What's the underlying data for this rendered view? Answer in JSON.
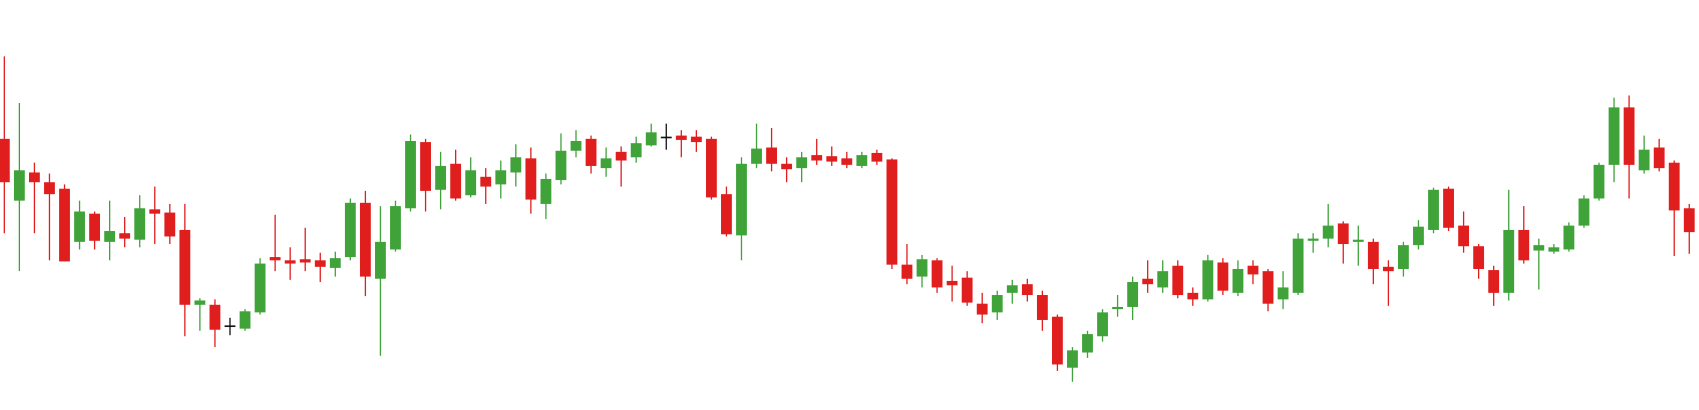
{
  "chart_data": {
    "type": "candlestick",
    "up_color": "#3fa33a",
    "down_color": "#e01e1e",
    "doji_color": "#111111",
    "ylim": [
      0,
      378
    ],
    "open": [
      250,
      193,
      219,
      210,
      204,
      155,
      181,
      155,
      163,
      157,
      185,
      182,
      166,
      97,
      97,
      78,
      75,
      90,
      141,
      138,
      139,
      138,
      131,
      141,
      191,
      121,
      148,
      186,
      247,
      203,
      227,
      198,
      215,
      208,
      219,
      232,
      190,
      212,
      239,
      250,
      223,
      238,
      233,
      244,
      252,
      253,
      252,
      250,
      199,
      161,
      227,
      242,
      227,
      223,
      235,
      234,
      232,
      225,
      237,
      231,
      134,
      123,
      138,
      119,
      122,
      98,
      90,
      108,
      116,
      106,
      86,
      39,
      53,
      68,
      93,
      95,
      121,
      113,
      133,
      108,
      102,
      136,
      108,
      133,
      128,
      102,
      108,
      156,
      158,
      172,
      155,
      155,
      132,
      130,
      152,
      166,
      204,
      170,
      151,
      129,
      108,
      166,
      147,
      146,
      148,
      170,
      195,
      226,
      279,
      221,
      242,
      228,
      186
    ],
    "high": [
      326,
      283,
      228,
      218,
      208,
      193,
      183,
      193,
      178,
      198,
      206,
      190,
      190,
      103,
      102,
      85,
      93,
      140,
      180,
      150,
      168,
      145,
      146,
      195,
      202,
      188,
      193,
      254,
      250,
      238,
      240,
      233,
      223,
      230,
      245,
      242,
      218,
      255,
      258,
      253,
      242,
      243,
      252,
      264,
      264,
      258,
      258,
      252,
      206,
      233,
      264,
      260,
      233,
      238,
      250,
      243,
      238,
      238,
      240,
      232,
      153,
      143,
      140,
      133,
      128,
      108,
      110,
      120,
      121,
      110,
      88,
      58,
      73,
      93,
      106,
      123,
      138,
      138,
      138,
      113,
      143,
      140,
      138,
      138,
      130,
      128,
      163,
      163,
      190,
      174,
      170,
      158,
      138,
      155,
      175,
      205,
      206,
      183,
      153,
      133,
      203,
      188,
      158,
      153,
      173,
      198,
      228,
      288,
      290,
      253,
      250,
      230,
      190
    ],
    "low": [
      163,
      128,
      163,
      138,
      137,
      148,
      148,
      138,
      150,
      150,
      153,
      153,
      68,
      73,
      58,
      69,
      73,
      88,
      128,
      120,
      128,
      118,
      123,
      138,
      105,
      50,
      146,
      183,
      183,
      185,
      193,
      196,
      190,
      195,
      206,
      181,
      176,
      208,
      233,
      218,
      215,
      206,
      228,
      243,
      240,
      233,
      238,
      194,
      160,
      138,
      223,
      220,
      210,
      210,
      226,
      225,
      223,
      223,
      226,
      130,
      116,
      113,
      108,
      100,
      96,
      80,
      83,
      98,
      100,
      73,
      36,
      26,
      48,
      63,
      86,
      83,
      108,
      108,
      103,
      96,
      100,
      106,
      105,
      116,
      91,
      93,
      106,
      145,
      150,
      135,
      133,
      116,
      96,
      123,
      148,
      163,
      165,
      145,
      121,
      96,
      101,
      135,
      111,
      144,
      146,
      168,
      193,
      210,
      195,
      218,
      220,
      142,
      144
    ],
    "close": [
      210,
      221,
      210,
      199,
      137,
      183,
      156,
      165,
      158,
      186,
      181,
      160,
      97,
      101,
      74,
      78,
      91,
      135,
      138,
      135,
      136,
      132,
      140,
      191,
      123,
      155,
      188,
      248,
      202,
      225,
      195,
      221,
      206,
      221,
      233,
      194,
      213,
      239,
      248,
      225,
      232,
      230,
      246,
      256,
      252,
      249,
      247,
      196,
      162,
      227,
      241,
      227,
      222,
      233,
      230,
      229,
      226,
      235,
      229,
      134,
      121,
      139,
      113,
      115,
      99,
      88,
      106,
      115,
      106,
      83,
      42,
      55,
      70,
      90,
      95,
      118,
      116,
      128,
      106,
      102,
      138,
      110,
      130,
      125,
      98,
      113,
      158,
      158,
      170,
      153,
      157,
      130,
      128,
      152,
      169,
      203,
      168,
      151,
      130,
      108,
      166,
      138,
      152,
      150,
      170,
      195,
      226,
      279,
      226,
      240,
      223,
      184,
      164
    ]
  }
}
